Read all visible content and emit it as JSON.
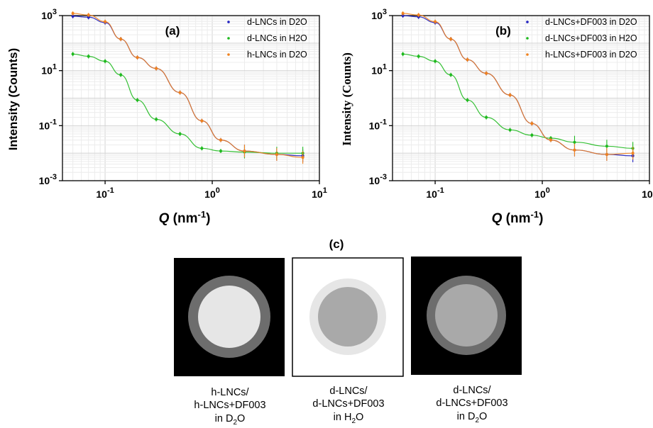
{
  "chart_data": [
    {
      "type": "scatter",
      "panel_label": "(a)",
      "xlabel_symbol": "Q",
      "xlabel_unit": "(nm",
      "xlabel_exp": "-1",
      "xlabel_close": ")",
      "ylabel": "Intensity (Counts)",
      "x_scale": "log",
      "y_scale": "log",
      "xlim": [
        0.04,
        10
      ],
      "ylim": [
        0.001,
        1000
      ],
      "x_ticks": [
        {
          "base": "10",
          "exp": "-1"
        },
        {
          "base": "10",
          "exp": "0"
        },
        {
          "base": "10",
          "exp": "1"
        }
      ],
      "y_ticks": [
        {
          "base": "10",
          "exp": "3"
        },
        {
          "base": "10",
          "exp": "1"
        },
        {
          "base": "10",
          "exp": "-1"
        },
        {
          "base": "10",
          "exp": "-3"
        }
      ],
      "legend_position": "top-right",
      "grid": true,
      "series": [
        {
          "name": "d-LNCs in D2O",
          "color": "#1f1fbf",
          "points": [
            [
              0.05,
              950
            ],
            [
              0.07,
              870
            ],
            [
              0.1,
              560
            ],
            [
              0.14,
              140
            ],
            [
              0.2,
              30
            ],
            [
              0.3,
              12
            ],
            [
              0.5,
              1.6
            ],
            [
              0.8,
              0.15
            ],
            [
              1.2,
              0.03
            ],
            [
              2,
              0.012
            ],
            [
              4,
              0.009
            ],
            [
              7,
              0.008
            ]
          ]
        },
        {
          "name": "d-LNCs in H2O",
          "color": "#1fb91f",
          "points": [
            [
              0.05,
              40
            ],
            [
              0.07,
              33
            ],
            [
              0.1,
              22
            ],
            [
              0.14,
              7
            ],
            [
              0.2,
              0.85
            ],
            [
              0.3,
              0.17
            ],
            [
              0.5,
              0.05
            ],
            [
              0.8,
              0.015
            ],
            [
              1.2,
              0.012
            ],
            [
              2,
              0.011
            ],
            [
              4,
              0.01
            ],
            [
              7,
              0.01
            ]
          ]
        },
        {
          "name": "h-LNCs in D2O",
          "color": "#f0821e",
          "points": [
            [
              0.05,
              1200
            ],
            [
              0.07,
              1050
            ],
            [
              0.1,
              600
            ],
            [
              0.14,
              140
            ],
            [
              0.2,
              30
            ],
            [
              0.3,
              12
            ],
            [
              0.5,
              1.6
            ],
            [
              0.8,
              0.15
            ],
            [
              1.2,
              0.03
            ],
            [
              2,
              0.012
            ],
            [
              4,
              0.009
            ],
            [
              7,
              0.007
            ]
          ]
        }
      ]
    },
    {
      "type": "scatter",
      "panel_label": "(b)",
      "xlabel_symbol": "Q",
      "xlabel_unit": "(nm",
      "xlabel_exp": "-1",
      "xlabel_close": ")",
      "ylabel": "Intensity (Counts)",
      "x_scale": "log",
      "y_scale": "log",
      "xlim": [
        0.04,
        10
      ],
      "ylim": [
        0.001,
        1000
      ],
      "x_ticks": [
        {
          "base": "10",
          "exp": "-1"
        },
        {
          "base": "10",
          "exp": "0"
        },
        {
          "base": "10",
          "exp": "1"
        }
      ],
      "y_ticks": [
        {
          "base": "10",
          "exp": "3"
        },
        {
          "base": "10",
          "exp": "1"
        },
        {
          "base": "10",
          "exp": "-1"
        },
        {
          "base": "10",
          "exp": "-3"
        }
      ],
      "legend_position": "top-right",
      "grid": true,
      "series": [
        {
          "name": "d-LNCs+DF003 in D2O",
          "color": "#1f1fbf",
          "points": [
            [
              0.05,
              1000
            ],
            [
              0.07,
              900
            ],
            [
              0.1,
              560
            ],
            [
              0.14,
              140
            ],
            [
              0.2,
              25
            ],
            [
              0.3,
              8
            ],
            [
              0.5,
              1.3
            ],
            [
              0.8,
              0.12
            ],
            [
              1.2,
              0.03
            ],
            [
              2,
              0.013
            ],
            [
              4,
              0.009
            ],
            [
              7,
              0.008
            ]
          ]
        },
        {
          "name": "d-LNCs+DF003 in H2O",
          "color": "#1fb91f",
          "points": [
            [
              0.05,
              40
            ],
            [
              0.07,
              33
            ],
            [
              0.1,
              22
            ],
            [
              0.14,
              7
            ],
            [
              0.2,
              0.85
            ],
            [
              0.3,
              0.2
            ],
            [
              0.5,
              0.07
            ],
            [
              0.8,
              0.045
            ],
            [
              1.2,
              0.035
            ],
            [
              2,
              0.025
            ],
            [
              4,
              0.018
            ],
            [
              7,
              0.015
            ]
          ]
        },
        {
          "name": "h-LNCs+DF003 in D2O",
          "color": "#f0821e",
          "points": [
            [
              0.05,
              1200
            ],
            [
              0.07,
              1050
            ],
            [
              0.1,
              600
            ],
            [
              0.14,
              140
            ],
            [
              0.2,
              25
            ],
            [
              0.3,
              8
            ],
            [
              0.5,
              1.3
            ],
            [
              0.8,
              0.12
            ],
            [
              1.2,
              0.03
            ],
            [
              2,
              0.013
            ],
            [
              4,
              0.009
            ],
            [
              7,
              0.01
            ]
          ]
        }
      ]
    }
  ],
  "panel_c": {
    "label": "(c)",
    "captions": [
      {
        "line1": "h-LNCs/",
        "line2": "h-LNCs+DF003",
        "line3_pre": "in D",
        "line3_sub": "2",
        "line3_post": "O"
      },
      {
        "line1": "d-LNCs/",
        "line2": "d-LNCs+DF003",
        "line3_pre": "in H",
        "line3_sub": "2",
        "line3_post": "O"
      },
      {
        "line1": "d-LNCs/",
        "line2": "d-LNCs+DF003",
        "line3_pre": "in D",
        "line3_sub": "2",
        "line3_post": "O"
      }
    ]
  }
}
